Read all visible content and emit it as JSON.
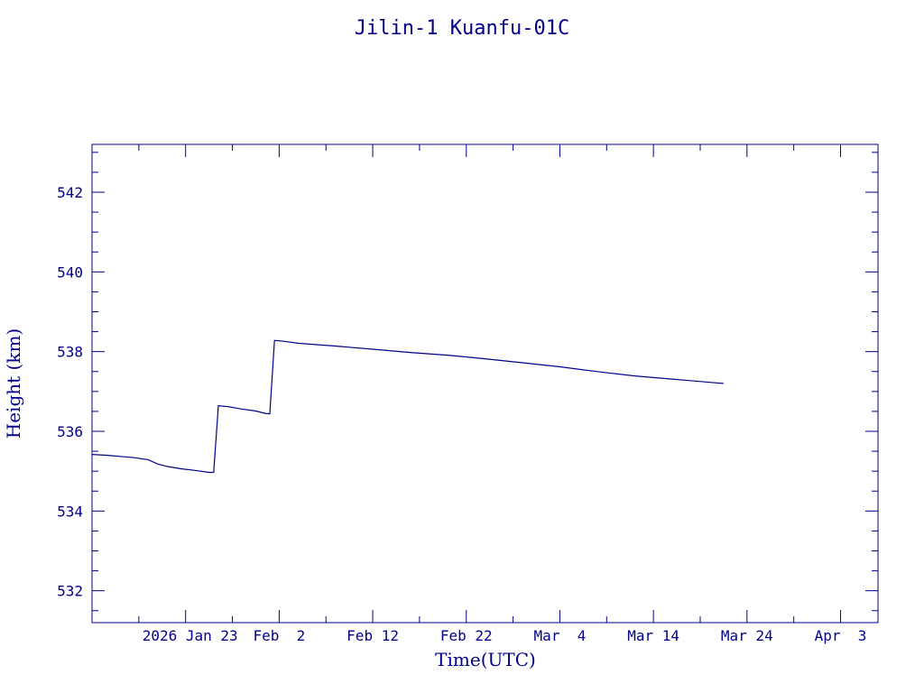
{
  "chart_data": {
    "type": "line",
    "title": "Jilin-1 Kuanfu-01C",
    "xlabel": "Time(UTC)",
    "ylabel": "Height (km)",
    "x_ticks": [
      "2026 Jan 23",
      "Feb  2",
      "Feb 12",
      "Feb 22",
      "Mar  4",
      "Mar 14",
      "Mar 24",
      "Apr  3"
    ],
    "y_ticks": [
      "532",
      "534",
      "536",
      "538",
      "540",
      "542"
    ],
    "ylim": [
      531.2,
      543.2
    ],
    "xlim": [
      "2026-01-13T00:00",
      "2026-04-07T00:00"
    ],
    "grid": false,
    "color": "#00008b",
    "series": [
      {
        "x": [
          "2026-01-13T00:00",
          "2026-01-14T12:00",
          "2026-01-16T00:00",
          "2026-01-17T12:00",
          "2026-01-19T00:00",
          "2026-01-20T00:00",
          "2026-01-21T00:00",
          "2026-01-22T12:00",
          "2026-01-24T00:00",
          "2026-01-25T12:00",
          "2026-01-26T00:00",
          "2026-01-26T12:00",
          "2026-01-27T12:00",
          "2026-01-29T00:00",
          "2026-01-30T12:00",
          "2026-01-31T12:00",
          "2026-02-01T00:00",
          "2026-02-01T12:00",
          "2026-02-02T12:00",
          "2026-02-04T00:00",
          "2026-02-08T00:00",
          "2026-02-12T00:00",
          "2026-02-16T00:00",
          "2026-02-20T00:00",
          "2026-02-24T00:00",
          "2026-02-28T00:00",
          "2026-03-04T00:00",
          "2026-03-08T00:00",
          "2026-03-12T00:00",
          "2026-03-16T00:00",
          "2026-03-20T00:00",
          "2026-03-21T12:00"
        ],
        "y": [
          535.42,
          535.4,
          535.37,
          535.34,
          535.29,
          535.18,
          535.12,
          535.06,
          535.02,
          534.97,
          534.97,
          536.64,
          536.62,
          536.56,
          536.51,
          536.45,
          536.44,
          538.28,
          538.26,
          538.21,
          538.14,
          538.06,
          537.98,
          537.91,
          537.82,
          537.72,
          537.62,
          537.5,
          537.39,
          537.31,
          537.23,
          537.2
        ]
      }
    ]
  }
}
